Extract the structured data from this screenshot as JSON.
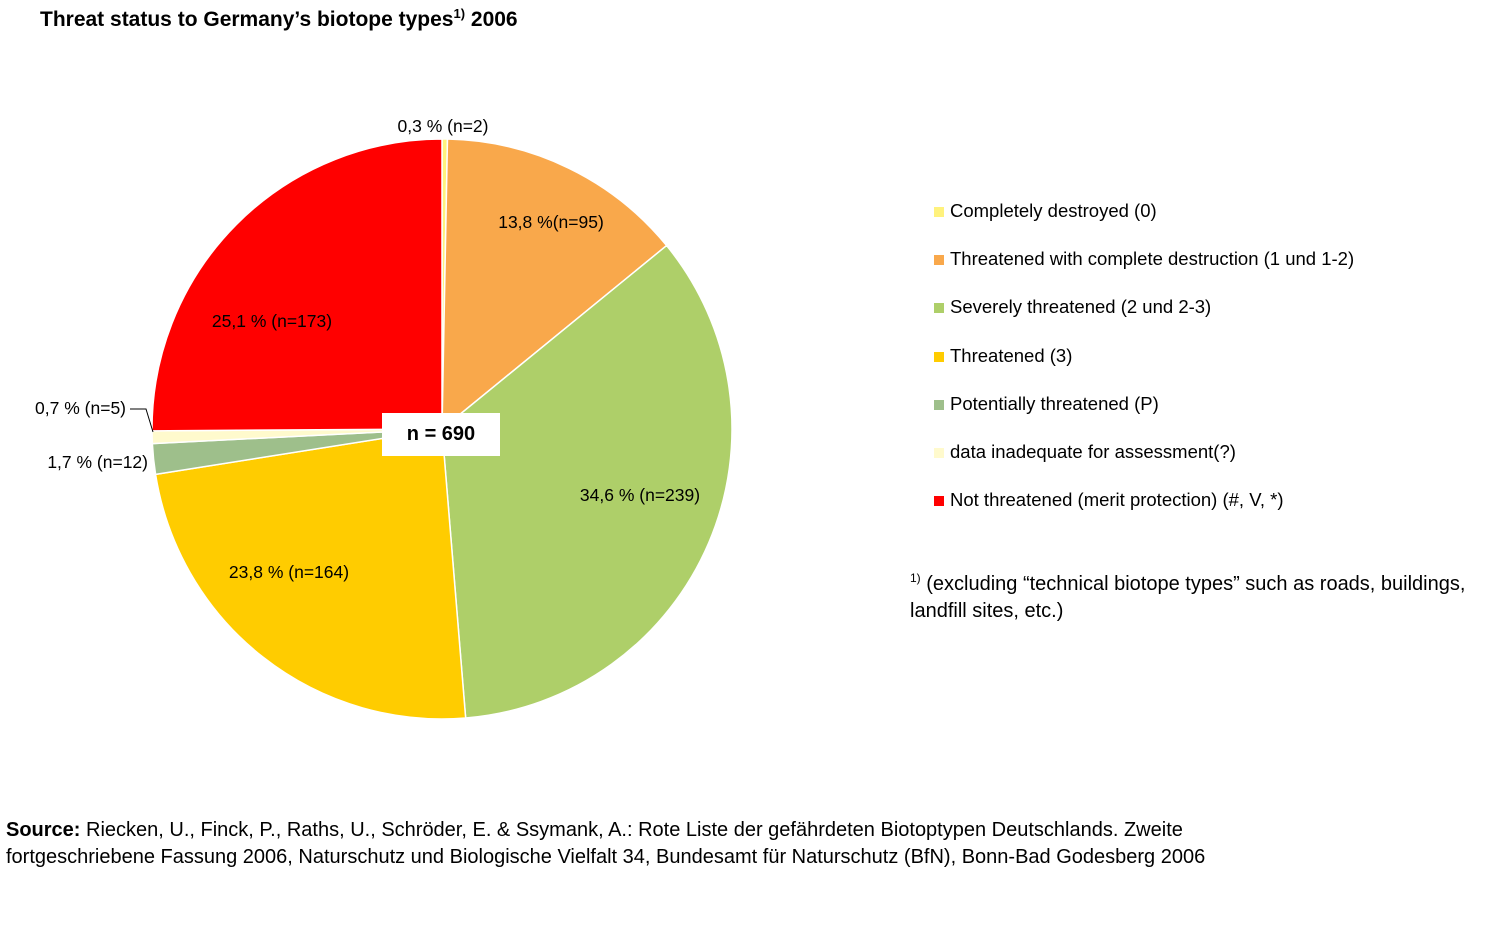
{
  "title": {
    "text": "Threat status to Germany’s biotope types",
    "superscript": "1)",
    "year": "2006"
  },
  "chart_data": {
    "type": "pie",
    "title": "Threat status to Germany’s biotope types 1) 2006",
    "total_label": "n = 690",
    "start_angle_deg": 0,
    "direction": "clockwise",
    "slices": [
      {
        "name": "Completely destroyed (0)",
        "percent": 0.3,
        "n": 2,
        "label": "0,3 % (n=2)",
        "color": "#FFF27D"
      },
      {
        "name": "Threatened with complete destruction (1 und 1-2)",
        "percent": 13.8,
        "n": 95,
        "label": "13,8 %(n=95)",
        "color": "#F9A84B"
      },
      {
        "name": "Severely threatened (2 und 2-3)",
        "percent": 34.6,
        "n": 239,
        "label": "34,6 % (n=239)",
        "color": "#AECF69"
      },
      {
        "name": "Threatened (3)",
        "percent": 23.8,
        "n": 164,
        "label": "23,8 % (n=164)",
        "color": "#FFCC00"
      },
      {
        "name": "Potentially threatened (P)",
        "percent": 1.7,
        "n": 12,
        "label": "1,7 % (n=12)",
        "color": "#9EBF8B"
      },
      {
        "name": "data inadequate for assessment(?)",
        "percent": 0.7,
        "n": 5,
        "label": "0,7 % (n=5)",
        "color": "#FFFACD"
      },
      {
        "name": "Not threatened (merit protection) (#, V, *)",
        "percent": 25.1,
        "n": 173,
        "label": "25,1 % (n=173)",
        "color": "#FF0000"
      }
    ]
  },
  "legend": {
    "placement": "right"
  },
  "footnote": {
    "marker": "1)",
    "text": "(excluding “technical biotope types” such as roads, buildings,  landfill  sites, etc.)"
  },
  "source": {
    "label": "Source:",
    "text": "Riecken, U., Finck, P., Raths, U., Schröder, E. & Ssymank, A.: Rote Liste der gefährdeten Biotoptypen Deutschlands. Zweite",
    "text_line2": "fortgeschriebene Fassung 2006, Naturschutz und Biologische Vielfalt 34, Bundesamt für Naturschutz (BfN), Bonn-Bad Godesberg 2006"
  }
}
